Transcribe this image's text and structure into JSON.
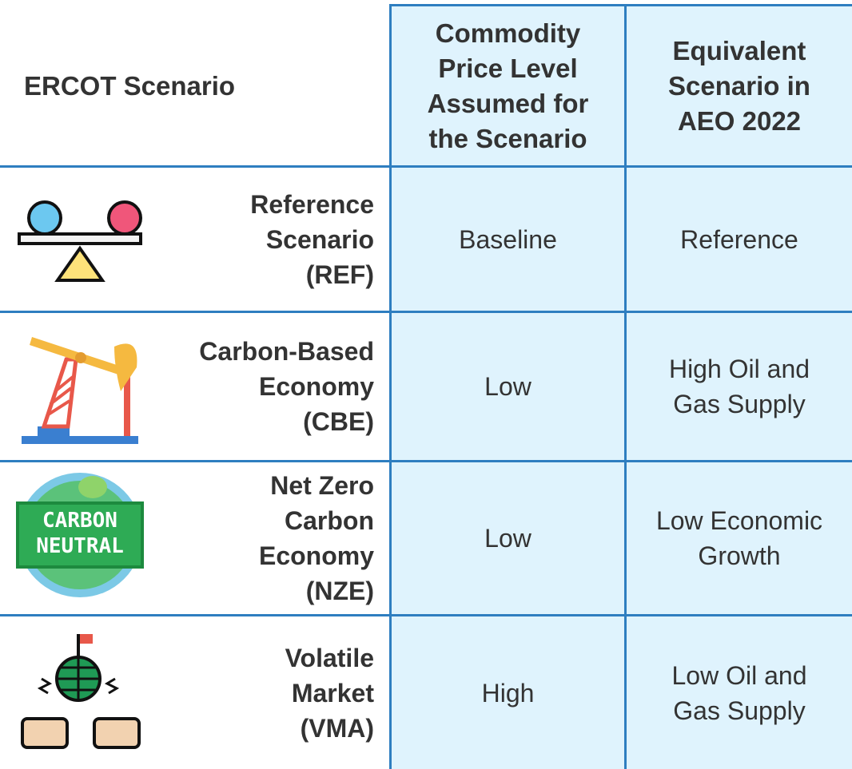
{
  "table": {
    "header": [
      "ERCOT Scenario",
      "Commodity\nPrice Level\nAssumed for\nthe Scenario",
      "Equivalent\nScenario in\nAEO 2022"
    ],
    "rows": [
      [
        "Reference\nScenario\n(REF)",
        "Baseline",
        "Reference"
      ],
      [
        "Carbon-Based\nEconomy\n(CBE)",
        "Low",
        "High Oil and\nGas Supply"
      ],
      [
        "Net Zero\nCarbon\nEconomy\n(NZE)",
        "Low",
        "Low Economic\nGrowth"
      ],
      [
        "Volatile\nMarket\n(VMA)",
        "High",
        "Low Oil and\nGas Supply"
      ]
    ],
    "icon_text": [
      "CARBON",
      "NEUTRAL"
    ]
  }
}
